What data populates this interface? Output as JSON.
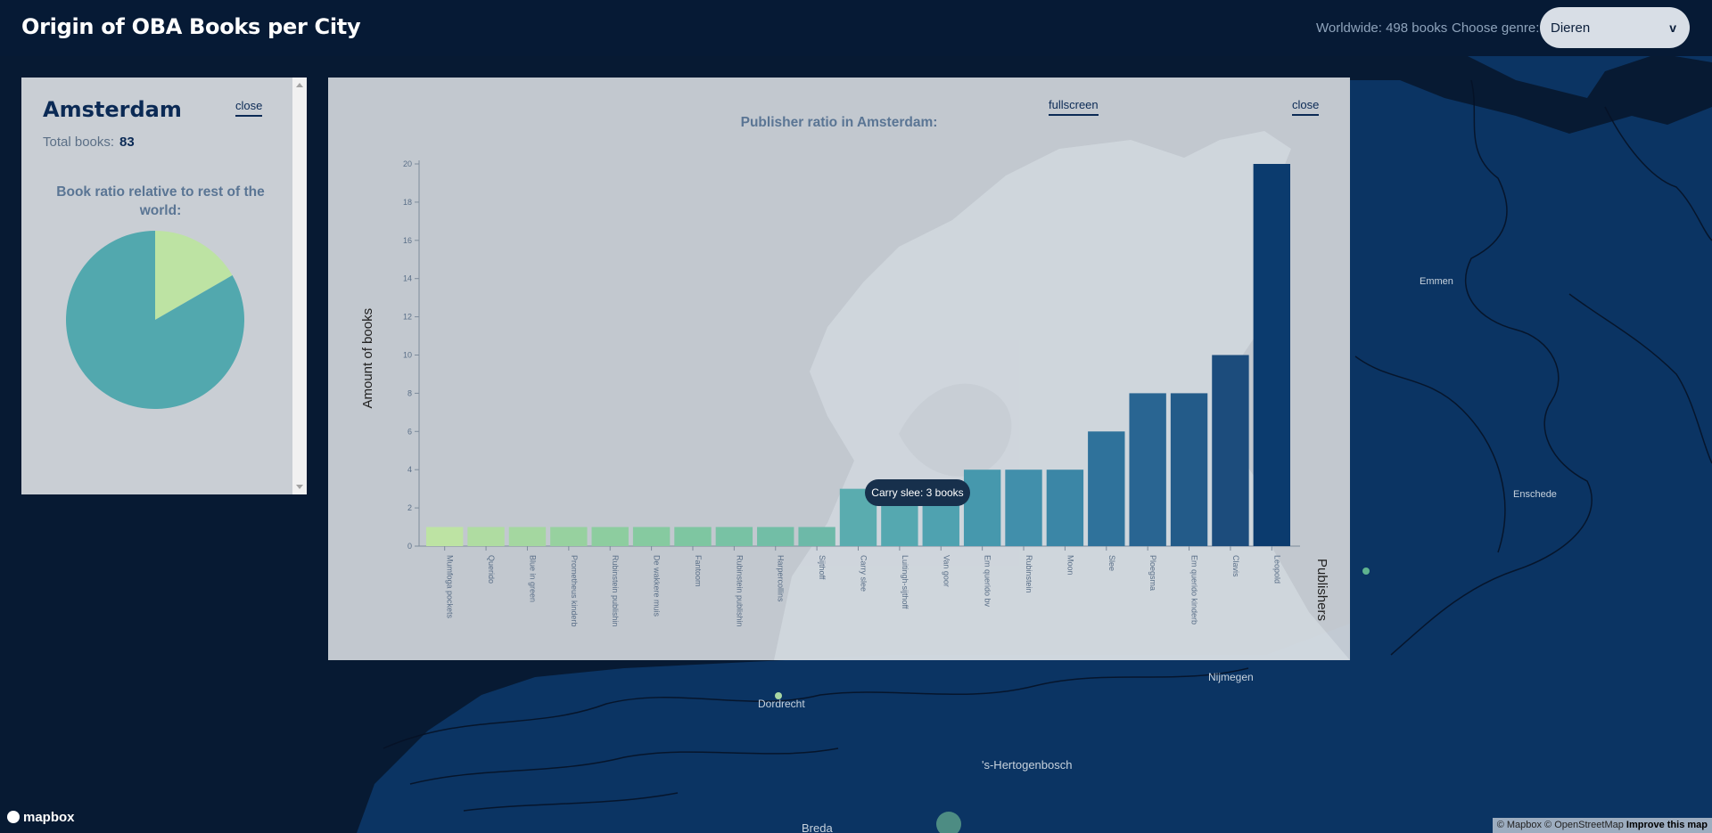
{
  "header": {
    "title": "Origin of OBA Books per City",
    "worldwide": "Worldwide: 498 books",
    "genre_label": "Choose genre:",
    "genre_value": "Dieren",
    "genre_caret": "v"
  },
  "city_panel": {
    "city": "Amsterdam",
    "close_label": "close",
    "total_label": "Total books:",
    "total_value": "83",
    "ratio_title": "Book ratio relative to rest of the world:",
    "pie": [
      {
        "label": "Amsterdam",
        "value": 83,
        "color": "#bde3a3"
      },
      {
        "label": "Rest of the world",
        "value": 415,
        "color": "#52a8ae"
      }
    ]
  },
  "chart_panel": {
    "title": "Publisher ratio in Amsterdam:",
    "fullscreen_label": "fullscreen",
    "close_label": "close",
    "tooltip": "Carry slee: 3 books"
  },
  "chart_data": {
    "type": "bar",
    "title": "Publisher ratio in Amsterdam:",
    "xlabel": "Publishers",
    "ylabel": "Amount of books",
    "ylim": [
      0,
      20
    ],
    "yticks": [
      0,
      2,
      4,
      6,
      8,
      10,
      12,
      14,
      16,
      18,
      20
    ],
    "categories": [
      "Mumfoga pockets",
      "Querido",
      "Blue in green",
      "Prometheus kinderb",
      "Rubinstein publishin",
      "De wakkere muis",
      "Fantoom",
      "Rubinstein publishin",
      "Harpercollins",
      "Sijthoff",
      "Carry slee",
      "Luitingh-sijthoff",
      "Van goor",
      "Em querido bv",
      "Rubinstein",
      "Moon",
      "Slee",
      "Ploegsma",
      "Em querido kinderb",
      "Clavis",
      "Leopold"
    ],
    "values": [
      1,
      1,
      1,
      1,
      1,
      1,
      1,
      1,
      1,
      1,
      3,
      3,
      3,
      4,
      4,
      4,
      6,
      8,
      8,
      10,
      20
    ],
    "colors": [
      "#bde3a3",
      "#afdca1",
      "#a4d7a0",
      "#97d19f",
      "#8dcd9f",
      "#86caa0",
      "#7ec6a1",
      "#78c2a4",
      "#72bea6",
      "#6db9a8",
      "#5aacaf",
      "#55a8b0",
      "#4fa2b0",
      "#4698ad",
      "#418fab",
      "#3b86a6",
      "#2f729b",
      "#296592",
      "#235b89",
      "#1c4c7c",
      "#0b3b6e"
    ]
  },
  "map_labels": {
    "emmen": "Emmen",
    "enschede": "Enschede",
    "nijmegen": "Nijmegen",
    "dordrecht": "Dordrecht",
    "hertogenbosch": "'s-Hertogenbosch",
    "breda": "Breda"
  },
  "footer": {
    "mapbox": "mapbox",
    "attribution": "© Mapbox © OpenStreetMap",
    "improve": "Improve this map"
  }
}
